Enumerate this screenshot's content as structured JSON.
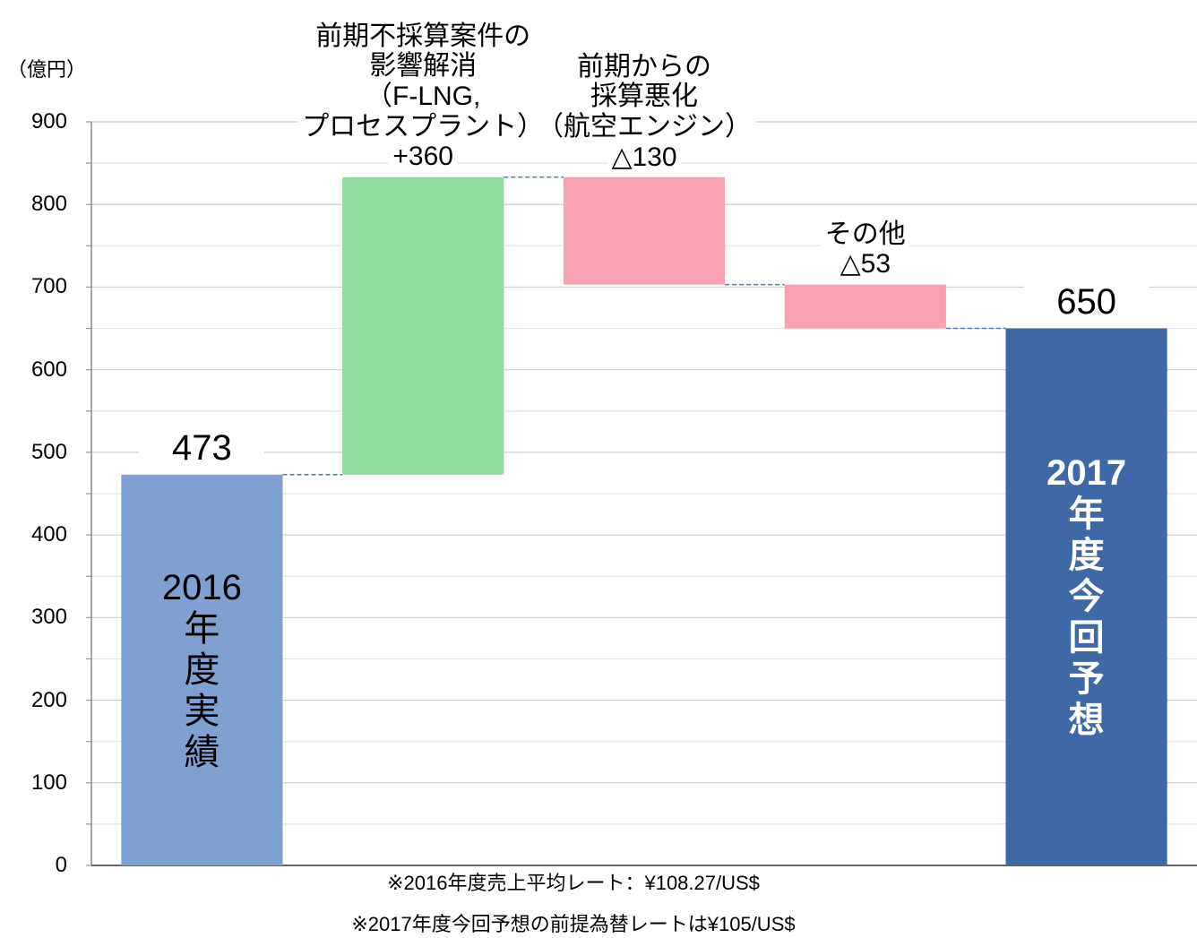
{
  "chart_data": {
    "type": "waterfall",
    "y_unit": "（億円）",
    "categories": [
      "2016\n年\n度\n実\n績",
      "前期不採算案件の\n影響解消\n（F-LNG,\nプロセスプラント）",
      "前期からの\n採算悪化\n（航空エンジン）",
      "その他",
      "2017\n年\n度\n今\n回\n予\n想"
    ],
    "values": [
      473,
      360,
      -130,
      -53,
      650
    ],
    "value_labels": [
      "473",
      "+360",
      "△130",
      "△53",
      "650"
    ],
    "measure": [
      "total",
      "relative",
      "relative",
      "relative",
      "total"
    ],
    "colors": [
      "#7fa1d1",
      "#8fdb9c",
      "#f7a1b2",
      "#f7a1b2",
      "#3e69a6"
    ],
    "category_label_colors": [
      "#000000",
      "#000000",
      "#000000",
      "#000000",
      "#ffffff"
    ],
    "connector_color": "#4a7ab5",
    "ylim": [
      0,
      900
    ],
    "yticks": [
      0,
      100,
      200,
      300,
      400,
      500,
      600,
      700,
      800,
      900
    ],
    "minor_yticks": [
      50,
      150,
      250,
      350,
      450,
      550,
      650,
      750,
      850
    ],
    "grid": true,
    "notes": [
      "※2016年度売上平均レート：¥108.27/US$",
      "※2017年度今回予想の前提為替レートは¥105/US$"
    ]
  }
}
